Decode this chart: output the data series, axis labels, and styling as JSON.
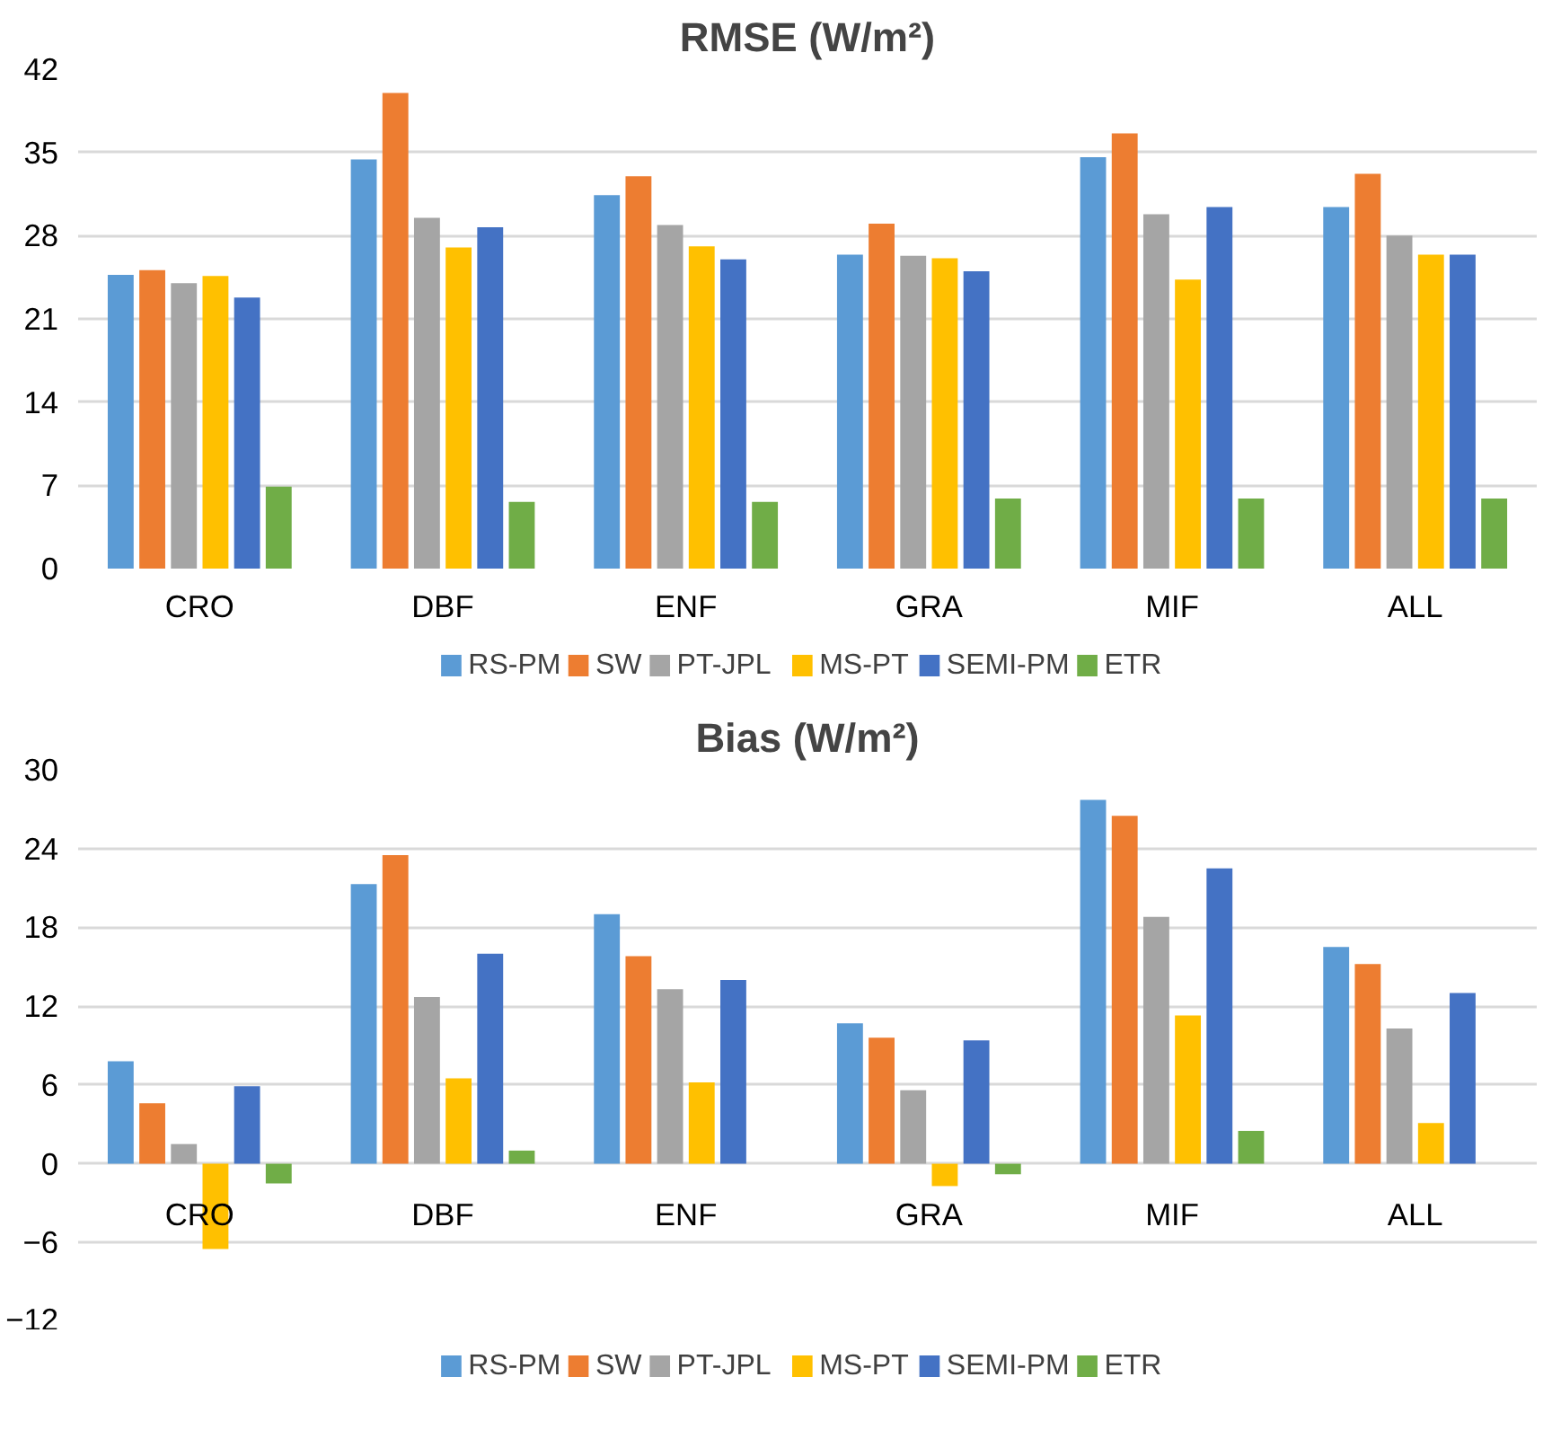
{
  "chart_data": [
    {
      "type": "bar",
      "title": "RMSE (W/m²)",
      "categories": [
        "CRO",
        "DBF",
        "ENF",
        "GRA",
        "MIF",
        "ALL"
      ],
      "ylim": [
        0,
        42
      ],
      "yticks": [
        0,
        7,
        14,
        21,
        28,
        35,
        42
      ],
      "grid": "y",
      "legend": "bottom",
      "series": [
        {
          "name": "RS-PM",
          "color": "#5b9bd5",
          "values": [
            24.7,
            34.4,
            31.4,
            26.4,
            34.6,
            30.4
          ]
        },
        {
          "name": "SW",
          "color": "#ed7d31",
          "values": [
            25.1,
            40,
            33,
            29,
            36.6,
            33.2
          ]
        },
        {
          "name": "PT-JPL",
          "color": "#a5a5a5",
          "values": [
            24,
            29.5,
            28.9,
            26.3,
            29.8,
            28
          ]
        },
        {
          "name": "MS-PT",
          "color": "#ffc000",
          "values": [
            24.6,
            27,
            27.1,
            26.1,
            24.3,
            26.4
          ]
        },
        {
          "name": "SEMI-PM",
          "color": "#4472c4",
          "values": [
            22.8,
            28.7,
            26,
            25,
            30.4,
            26.4
          ]
        },
        {
          "name": "ETR",
          "color": "#70ad47",
          "values": [
            6.9,
            5.6,
            5.6,
            5.9,
            5.9,
            5.9
          ]
        }
      ]
    },
    {
      "type": "bar",
      "title": "Bias (W/m²)",
      "categories": [
        "CRO",
        "DBF",
        "ENF",
        "GRA",
        "MIF",
        "ALL"
      ],
      "ylim": [
        -12,
        30
      ],
      "yticks": [
        -12,
        -6,
        0,
        6,
        12,
        18,
        24,
        30
      ],
      "grid": "y",
      "legend": "bottom",
      "series": [
        {
          "name": "RS-PM",
          "color": "#5b9bd5",
          "values": [
            7.8,
            21.3,
            19,
            10.7,
            27.7,
            16.5
          ]
        },
        {
          "name": "SW",
          "color": "#ed7d31",
          "values": [
            4.6,
            23.5,
            15.8,
            9.6,
            26.5,
            15.2
          ]
        },
        {
          "name": "PT-JPL",
          "color": "#a5a5a5",
          "values": [
            1.5,
            12.7,
            13.3,
            5.6,
            18.8,
            10.3
          ]
        },
        {
          "name": "MS-PT",
          "color": "#ffc000",
          "values": [
            -6.5,
            6.5,
            6.2,
            -1.7,
            11.3,
            3.1
          ]
        },
        {
          "name": "SEMI-PM",
          "color": "#4472c4",
          "values": [
            5.9,
            16,
            14,
            9.4,
            22.5,
            13
          ]
        },
        {
          "name": "ETR",
          "color": "#70ad47",
          "values": [
            -1.5,
            1,
            0,
            -0.8,
            2.5,
            0
          ]
        }
      ]
    }
  ]
}
